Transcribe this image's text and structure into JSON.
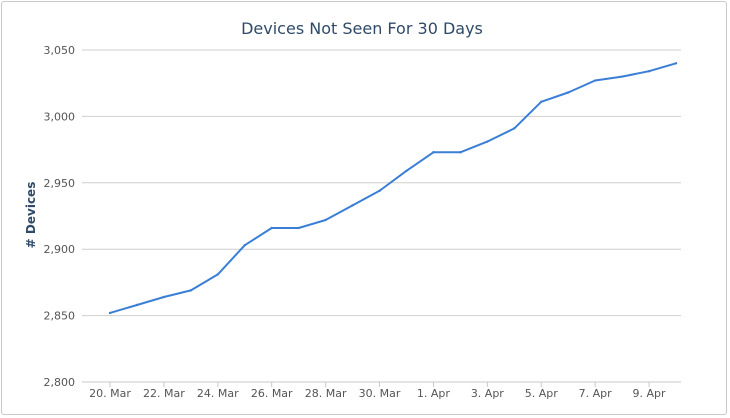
{
  "chart_data": {
    "type": "line",
    "title": "Devices Not Seen For 30 Days",
    "xlabel": "",
    "ylabel": "# Devices",
    "ylim": [
      2800,
      3050
    ],
    "yticks": [
      2800,
      2850,
      2900,
      2950,
      3000,
      3050
    ],
    "ytick_labels": [
      "2,800",
      "2,850",
      "2,900",
      "2,950",
      "3,000",
      "3,050"
    ],
    "grid": true,
    "legend": "none",
    "x": [
      "20. Mar",
      "21. Mar",
      "22. Mar",
      "23. Mar",
      "24. Mar",
      "25. Mar",
      "26. Mar",
      "27. Mar",
      "28. Mar",
      "29. Mar",
      "30. Mar",
      "31. Mar",
      "1. Apr",
      "2. Apr",
      "3. Apr",
      "4. Apr",
      "5. Apr",
      "6. Apr",
      "7. Apr",
      "8. Apr",
      "9. Apr",
      "10. Apr"
    ],
    "xtick_labels": [
      "20. Mar",
      "22. Mar",
      "24. Mar",
      "26. Mar",
      "28. Mar",
      "30. Mar",
      "1. Apr",
      "3. Apr",
      "5. Apr",
      "7. Apr",
      "9. Apr"
    ],
    "series": [
      {
        "values": [
          2852,
          2858,
          2864,
          2869,
          2881,
          2903,
          2916,
          2916,
          2922,
          2933,
          2944,
          2959,
          2973,
          2973,
          2981,
          2991,
          3011,
          3018,
          3027,
          3030,
          3034,
          3040
        ],
        "color": "#3a7fd5"
      }
    ]
  }
}
